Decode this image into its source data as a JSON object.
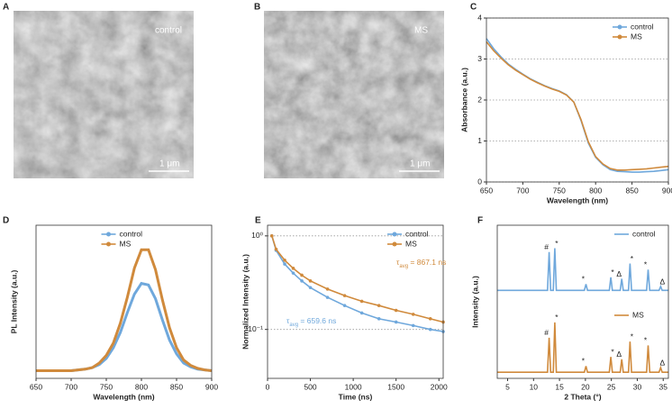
{
  "images": [
    {
      "panel": "A",
      "caption": "control",
      "scale_bar": "1 μm"
    },
    {
      "panel": "B",
      "caption": "MS",
      "scale_bar": "1 μm"
    }
  ],
  "chart_data": [
    {
      "panel": "C",
      "type": "line",
      "xlabel": "Wavelength (nm)",
      "ylabel": "Absorbance (a.u.)",
      "x": [
        650,
        660,
        670,
        680,
        690,
        700,
        710,
        720,
        730,
        740,
        750,
        760,
        770,
        780,
        790,
        800,
        810,
        820,
        830,
        840,
        850,
        860,
        870,
        880,
        890,
        900
      ],
      "xlim": [
        650,
        900
      ],
      "xticks": [
        650,
        700,
        750,
        800,
        850,
        900
      ],
      "ylim": [
        0,
        4
      ],
      "yticks": [
        0,
        1,
        2,
        3,
        4
      ],
      "grid": true,
      "legend": "upper right",
      "series": [
        {
          "name": "control",
          "color": "#6fa8dc",
          "values": [
            3.5,
            3.25,
            3.05,
            2.88,
            2.75,
            2.63,
            2.52,
            2.43,
            2.35,
            2.28,
            2.22,
            2.13,
            1.95,
            1.5,
            0.95,
            0.6,
            0.42,
            0.3,
            0.26,
            0.25,
            0.24,
            0.24,
            0.25,
            0.26,
            0.28,
            0.3
          ]
        },
        {
          "name": "MS",
          "color": "#d08a3c",
          "values": [
            3.42,
            3.2,
            3.02,
            2.86,
            2.73,
            2.62,
            2.51,
            2.42,
            2.34,
            2.27,
            2.21,
            2.12,
            1.95,
            1.52,
            0.98,
            0.62,
            0.44,
            0.33,
            0.29,
            0.29,
            0.3,
            0.31,
            0.32,
            0.34,
            0.36,
            0.38
          ]
        }
      ]
    },
    {
      "panel": "D",
      "type": "line",
      "xlabel": "Wavelength (nm)",
      "ylabel": "PL Intensity (a.u.)",
      "x": [
        650,
        660,
        670,
        680,
        690,
        700,
        710,
        720,
        730,
        740,
        750,
        760,
        770,
        780,
        790,
        800,
        810,
        820,
        830,
        840,
        850,
        860,
        870,
        880,
        890,
        900
      ],
      "xlim": [
        650,
        900
      ],
      "xticks": [
        650,
        700,
        750,
        800,
        850,
        900
      ],
      "ylim": [
        0,
        1
      ],
      "grid": false,
      "legend": "upper center",
      "series": [
        {
          "name": "control",
          "color": "#6fa8dc",
          "values": [
            0.05,
            0.05,
            0.05,
            0.05,
            0.05,
            0.05,
            0.055,
            0.06,
            0.07,
            0.09,
            0.13,
            0.2,
            0.3,
            0.43,
            0.55,
            0.62,
            0.61,
            0.52,
            0.38,
            0.25,
            0.16,
            0.1,
            0.075,
            0.06,
            0.055,
            0.05
          ]
        },
        {
          "name": "MS",
          "color": "#d08a3c",
          "values": [
            0.05,
            0.05,
            0.05,
            0.05,
            0.05,
            0.05,
            0.055,
            0.06,
            0.07,
            0.1,
            0.15,
            0.23,
            0.36,
            0.53,
            0.72,
            0.84,
            0.84,
            0.71,
            0.51,
            0.33,
            0.2,
            0.12,
            0.085,
            0.065,
            0.055,
            0.05
          ]
        }
      ]
    },
    {
      "panel": "E",
      "type": "line",
      "markers": true,
      "xlabel": "Time (ns)",
      "ylabel": "Normalized Intensity (a.u.)",
      "x": [
        50,
        100,
        200,
        300,
        400,
        500,
        700,
        900,
        1100,
        1300,
        1500,
        1700,
        1900,
        2050
      ],
      "xlim": [
        0,
        2050
      ],
      "xticks": [
        0,
        500,
        1000,
        1500,
        2000
      ],
      "ylim": [
        0.03,
        1.3
      ],
      "ylog": true,
      "yticks": [
        {
          "value": 0.1,
          "label": "10⁻¹"
        },
        {
          "value": 1,
          "label": "10⁰"
        }
      ],
      "grid": true,
      "legend": "upper right",
      "series": [
        {
          "name": "control",
          "color": "#6fa8dc",
          "values": [
            1.0,
            0.7,
            0.5,
            0.4,
            0.33,
            0.28,
            0.22,
            0.18,
            0.15,
            0.13,
            0.12,
            0.11,
            0.1,
            0.095
          ]
        },
        {
          "name": "MS",
          "color": "#d08a3c",
          "values": [
            1.0,
            0.72,
            0.55,
            0.45,
            0.38,
            0.33,
            0.27,
            0.23,
            0.2,
            0.18,
            0.16,
            0.145,
            0.13,
            0.12
          ]
        }
      ],
      "annotations": [
        {
          "symbol": "τ",
          "subscript": "avg",
          "text": " = 867.1 ns",
          "color": "#d08a3c"
        },
        {
          "symbol": "τ",
          "subscript": "avg",
          "text": " = 659.6 ns",
          "color": "#6fa8dc"
        }
      ]
    },
    {
      "panel": "F",
      "type": "line",
      "xlabel": "2 Theta (°)",
      "ylabel": "Intensity (a.u.)",
      "x": [
        3,
        12.7,
        13.0,
        13.3,
        13.8,
        14.1,
        14.4,
        19.8,
        20.1,
        20.4,
        24.6,
        24.9,
        25.2,
        26.7,
        27.0,
        27.3,
        28.3,
        28.6,
        28.9,
        31.8,
        32.1,
        32.4,
        34.2,
        34.5,
        34.8,
        36
      ],
      "xlim": [
        3,
        36
      ],
      "xticks": [
        5,
        10,
        15,
        20,
        25,
        30,
        35
      ],
      "ylim": [
        0,
        2
      ],
      "grid": false,
      "legend": "per-series",
      "series": [
        {
          "name": "control",
          "color": "#6fa8dc",
          "values": [
            1.15,
            1.15,
            1.65,
            1.15,
            1.15,
            1.7,
            1.15,
            1.15,
            1.23,
            1.15,
            1.15,
            1.32,
            1.15,
            1.15,
            1.3,
            1.15,
            1.15,
            1.5,
            1.15,
            1.15,
            1.42,
            1.15,
            1.15,
            1.2,
            1.15,
            1.15
          ],
          "peak_labels": [
            "#",
            "*",
            "*",
            "*",
            "Δ",
            "*",
            "*",
            "Δ"
          ]
        },
        {
          "name": "MS",
          "color": "#d08a3c",
          "values": [
            0.08,
            0.08,
            0.53,
            0.08,
            0.08,
            0.73,
            0.08,
            0.08,
            0.16,
            0.08,
            0.08,
            0.28,
            0.08,
            0.08,
            0.25,
            0.08,
            0.08,
            0.48,
            0.08,
            0.08,
            0.43,
            0.08,
            0.08,
            0.14,
            0.08,
            0.08
          ],
          "peak_labels": [
            "#",
            "*",
            "*",
            "*",
            "Δ",
            "*",
            "*",
            "Δ"
          ]
        }
      ]
    }
  ]
}
